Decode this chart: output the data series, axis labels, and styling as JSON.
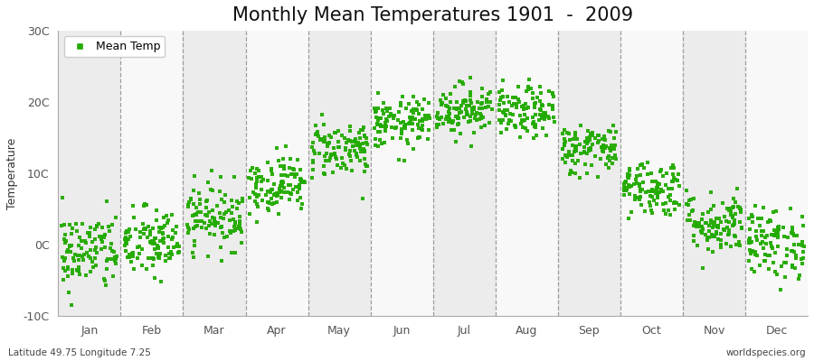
{
  "title": "Monthly Mean Temperatures 1901  -  2009",
  "ylabel": "Temperature",
  "ylim": [
    -10,
    30
  ],
  "yticks": [
    -10,
    0,
    10,
    20,
    30
  ],
  "ytick_labels": [
    "-10C",
    "0C",
    "10C",
    "20C",
    "30C"
  ],
  "months": [
    "Jan",
    "Feb",
    "Mar",
    "Apr",
    "May",
    "Jun",
    "Jul",
    "Aug",
    "Sep",
    "Oct",
    "Nov",
    "Dec"
  ],
  "bottom_left_text": "Latitude 49.75 Longitude 7.25",
  "bottom_right_text": "worldspecies.org",
  "legend_label": "Mean Temp",
  "marker_color": "#22aa00",
  "figure_facecolor": "#ffffff",
  "plot_facecolor": "#f4f4f4",
  "band_even_color": "#ececec",
  "band_odd_color": "#f8f8f8",
  "title_fontsize": 15,
  "axis_fontsize": 9,
  "monthly_mean_temps": [
    -1.0,
    0.2,
    4.0,
    8.5,
    13.5,
    17.0,
    19.0,
    18.5,
    13.5,
    8.0,
    3.0,
    0.2
  ],
  "monthly_std": [
    2.8,
    2.5,
    2.3,
    2.0,
    2.0,
    1.8,
    1.8,
    1.8,
    1.8,
    2.0,
    2.2,
    2.5
  ],
  "n_years": 109,
  "seed": 42
}
